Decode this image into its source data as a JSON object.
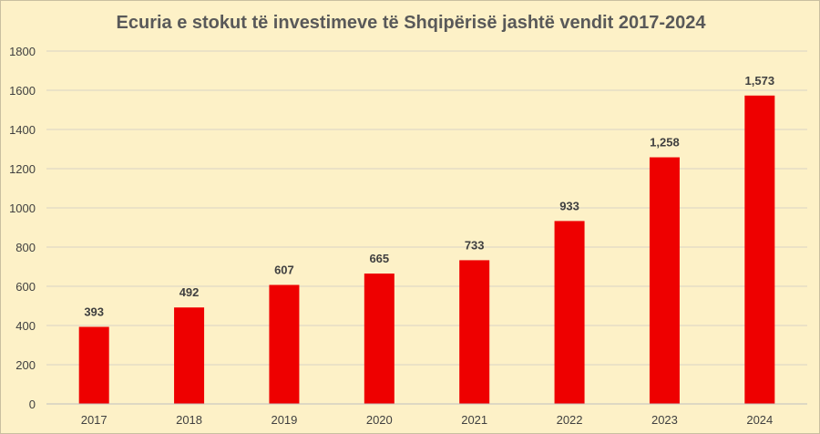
{
  "chart_data": {
    "type": "bar",
    "title": "Ecuria e stokut të investimeve të Shqipërisë jashtë vendit 2017-2024",
    "xlabel": "",
    "ylabel": "",
    "categories": [
      "2017",
      "2018",
      "2019",
      "2020",
      "2021",
      "2022",
      "2023",
      "2024"
    ],
    "values": [
      393,
      492,
      607,
      665,
      733,
      933,
      1258,
      1573
    ],
    "data_labels": [
      "393",
      "492",
      "607",
      "665",
      "733",
      "933",
      "1,258",
      "1,573"
    ],
    "ylim": [
      0,
      1800
    ],
    "yticks": [
      0,
      200,
      400,
      600,
      800,
      1000,
      1200,
      1400,
      1600,
      1800
    ],
    "ytick_labels": [
      "0",
      "200",
      "400",
      "600",
      "800",
      "1000",
      "1200",
      "1400",
      "1600",
      "1800"
    ],
    "grid": true,
    "legend": "none",
    "colors": {
      "bar": "#ee0000",
      "background": "#fdf1c7",
      "grid": "#d9d3c4",
      "text": "#404040",
      "title": "#595959"
    }
  }
}
